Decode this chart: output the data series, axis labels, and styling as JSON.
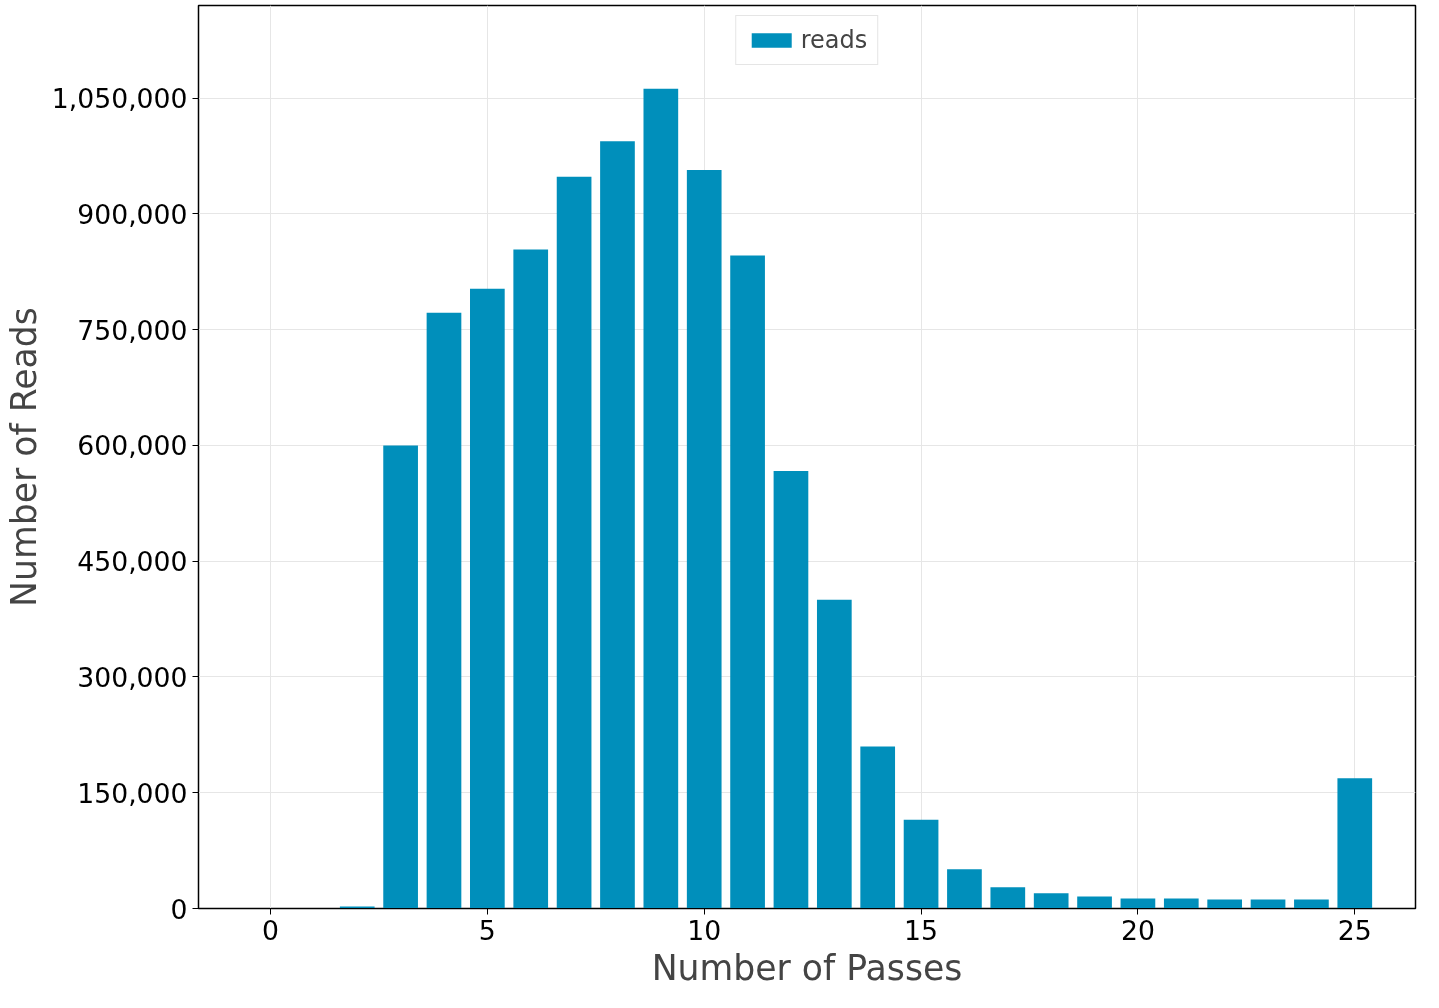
{
  "chart_data": {
    "type": "bar",
    "xlabel": "Number of Passes",
    "ylabel": "Number of Reads",
    "x": [
      0,
      1,
      2,
      3,
      4,
      5,
      6,
      7,
      8,
      9,
      10,
      11,
      12,
      13,
      14,
      15,
      16,
      17,
      18,
      19,
      20,
      21,
      22,
      23,
      24,
      25
    ],
    "series": [
      {
        "name": "reads",
        "color": "#008fbb",
        "values": [
          0,
          0,
          2600,
          600000,
          772000,
          803000,
          854000,
          948000,
          994000,
          1062000,
          957000,
          846000,
          567000,
          400000,
          210000,
          115000,
          51000,
          27500,
          19600,
          15700,
          13000,
          13000,
          11800,
          11800,
          11800,
          168700
        ]
      }
    ],
    "xlim": [
      -1.66,
      26.4
    ],
    "xticks": [
      0,
      5,
      10,
      15,
      20,
      25
    ],
    "ylim": [
      0,
      1170000
    ],
    "yticks": [
      {
        "value": 0,
        "label": "0"
      },
      {
        "value": 150000,
        "label": "150,000"
      },
      {
        "value": 300000,
        "label": "300,000"
      },
      {
        "value": 450000,
        "label": "450,000"
      },
      {
        "value": 600000,
        "label": "600,000"
      },
      {
        "value": 750000,
        "label": "750,000"
      },
      {
        "value": 900000,
        "label": "900,000"
      },
      {
        "value": 1050000,
        "label": "1,050,000"
      }
    ],
    "grid": true,
    "legend": "top"
  }
}
